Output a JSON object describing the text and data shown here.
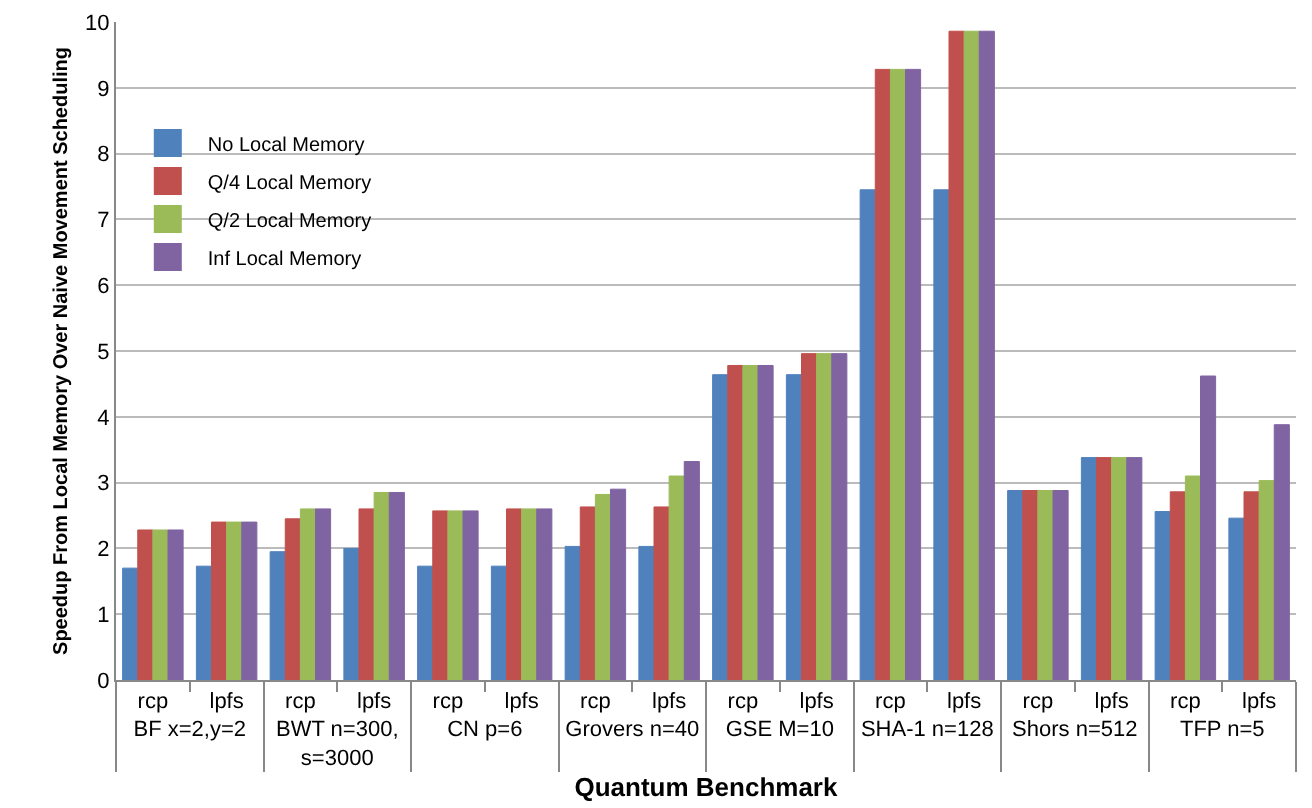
{
  "chart_data": {
    "type": "bar",
    "xlabel": "Quantum Benchmark",
    "ylabel": "Speedup From Local Memory Over Naive Movement Scheduling",
    "categories": [
      "rcp",
      "lpfs",
      "rcp",
      "lpfs",
      "rcp",
      "lpfs",
      "rcp",
      "lpfs",
      "rcp",
      "lpfs",
      "rcp",
      "lpfs",
      "rcp",
      "lpfs",
      "rcp",
      "lpfs"
    ],
    "annotations": [
      "BF x=2,y=2",
      "BWT n=300, s=3000",
      "CN p=6",
      "Grovers n=40",
      "GSE M=10",
      "SHA-1 n=128",
      "Shors n=512",
      "TFP n=5"
    ],
    "series": [
      {
        "name": "No Local Memory",
        "color": "#4f81bd",
        "values": [
          1.7,
          1.73,
          1.95,
          2.0,
          1.73,
          1.73,
          2.03,
          2.03,
          4.64,
          4.64,
          7.45,
          7.45,
          2.88,
          3.38,
          2.56,
          2.46
        ]
      },
      {
        "name": "Q/4 Local Memory",
        "color": "#c0504d",
        "values": [
          2.28,
          2.4,
          2.45,
          2.6,
          2.57,
          2.6,
          2.63,
          2.63,
          4.78,
          4.96,
          9.28,
          9.86,
          2.88,
          3.38,
          2.86,
          2.86
        ]
      },
      {
        "name": "Q/2 Local Memory",
        "color": "#9bbb59",
        "values": [
          2.28,
          2.4,
          2.6,
          2.85,
          2.57,
          2.6,
          2.82,
          3.1,
          4.78,
          4.96,
          9.28,
          9.86,
          2.88,
          3.38,
          3.1,
          3.03
        ]
      },
      {
        "name": "Inf Local Memory",
        "color": "#8064a2",
        "values": [
          2.28,
          2.4,
          2.6,
          2.85,
          2.57,
          2.6,
          2.9,
          3.32,
          4.78,
          4.96,
          9.28,
          9.86,
          2.88,
          3.38,
          4.62,
          3.88
        ]
      }
    ],
    "ylim": [
      0,
      10
    ],
    "yticks": [
      0,
      1,
      2,
      3,
      4,
      5,
      6,
      7,
      8,
      9,
      10
    ],
    "grid": "y",
    "legend": "top left"
  }
}
